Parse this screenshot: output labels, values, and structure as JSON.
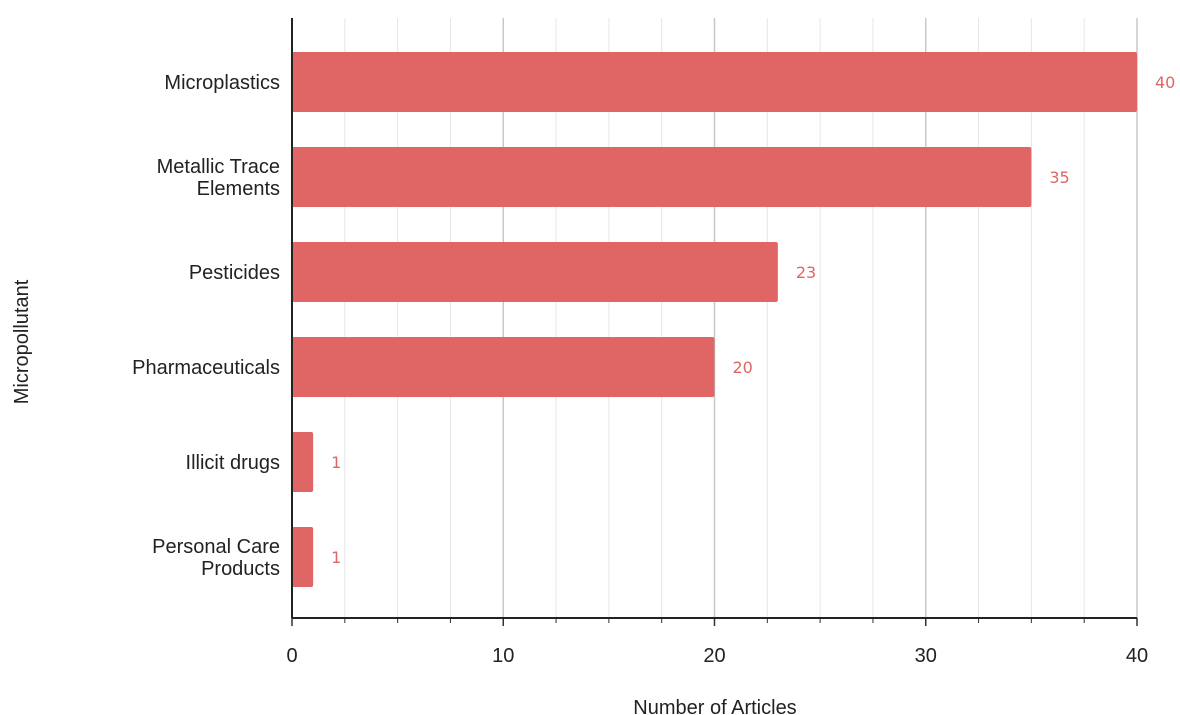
{
  "chart_data": {
    "type": "bar",
    "orientation": "horizontal",
    "categories": [
      "Microplastics",
      "Metallic Trace Elements",
      "Pesticides",
      "Pharmaceuticals",
      "Illicit drugs",
      "Personal Care Products"
    ],
    "category_lines": [
      [
        "Microplastics"
      ],
      [
        "Metallic Trace",
        "Elements"
      ],
      [
        "Pesticides"
      ],
      [
        "Pharmaceuticals"
      ],
      [
        "Illicit drugs"
      ],
      [
        "Personal Care",
        "Products"
      ]
    ],
    "values": [
      40,
      35,
      23,
      20,
      1,
      1
    ],
    "data_labels": [
      "40",
      "35",
      "23",
      "20",
      "1",
      "1"
    ],
    "xlabel": "Number of Articles",
    "ylabel": "Micropollutant",
    "xlim": [
      0,
      40
    ],
    "xticks": [
      0,
      10,
      20,
      30,
      40
    ],
    "xtick_labels": [
      "0",
      "10",
      "20",
      "30",
      "40"
    ],
    "minor_gridlines": true,
    "grid": true,
    "legend": "none",
    "bar_color": "#e06666",
    "label_color": "#e06666"
  }
}
